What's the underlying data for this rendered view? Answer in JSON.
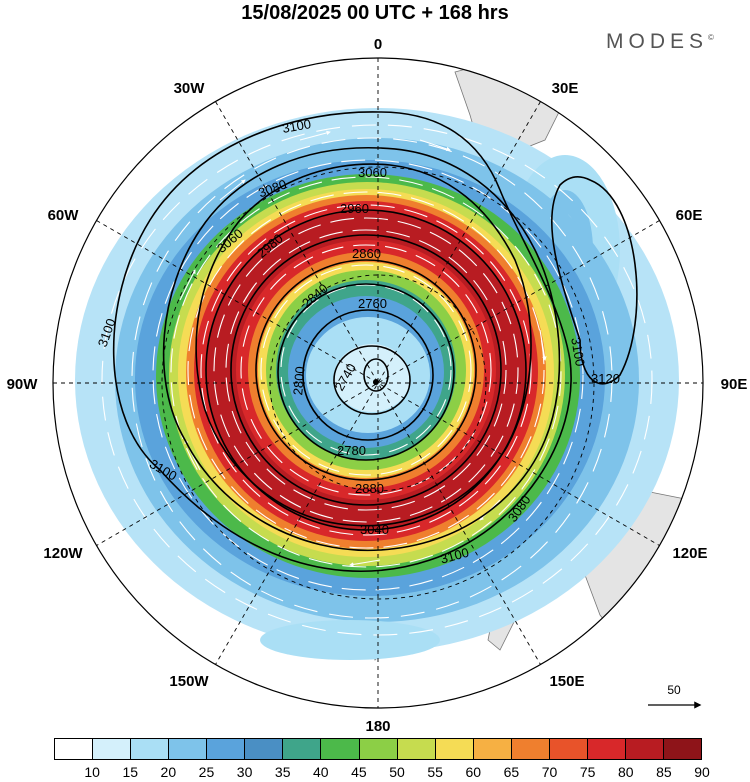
{
  "header": {
    "title": "15/08/2025  00 UTC  + 168 hrs",
    "brand": "MODES"
  },
  "map": {
    "projection": "south-polar-stereographic",
    "longitude_labels": [
      "0",
      "30E",
      "60E",
      "90E",
      "120E",
      "150E",
      "180",
      "150W",
      "120W",
      "90W",
      "60W",
      "30W"
    ],
    "height_contours": [
      {
        "label": "3120",
        "units": "gpm"
      },
      {
        "label": "3100",
        "units": "gpm"
      },
      {
        "label": "3080",
        "units": "gpm"
      },
      {
        "label": "3060",
        "units": "gpm"
      },
      {
        "label": "3040",
        "units": "gpm"
      },
      {
        "label": "2960",
        "units": "gpm"
      },
      {
        "label": "2880",
        "units": "gpm"
      },
      {
        "label": "2860",
        "units": "gpm"
      },
      {
        "label": "2840",
        "units": "gpm"
      },
      {
        "label": "2800",
        "units": "gpm"
      },
      {
        "label": "2780",
        "units": "gpm"
      },
      {
        "label": "2760",
        "units": "gpm"
      },
      {
        "label": "2740",
        "units": "gpm"
      },
      {
        "label": "2980",
        "units": "gpm"
      }
    ],
    "reference_vector": "50",
    "colors": {
      "land": "#e4e4e4",
      "contour": "#000000",
      "streamline": "#ffffff"
    }
  },
  "colorbar": {
    "ticks": [
      "10",
      "15",
      "20",
      "25",
      "30",
      "35",
      "40",
      "45",
      "50",
      "55",
      "60",
      "65",
      "70",
      "75",
      "80",
      "85",
      "90"
    ],
    "colors": [
      "#ffffff",
      "#d4f0fb",
      "#aadff5",
      "#7ec3ea",
      "#5aa3dc",
      "#4a8fc4",
      "#3fa58a",
      "#4cb94a",
      "#8ccf46",
      "#c6dc4f",
      "#f5dc55",
      "#f6b043",
      "#ef7f2e",
      "#e8532a",
      "#d8282a",
      "#b81c22",
      "#8e1419"
    ]
  }
}
